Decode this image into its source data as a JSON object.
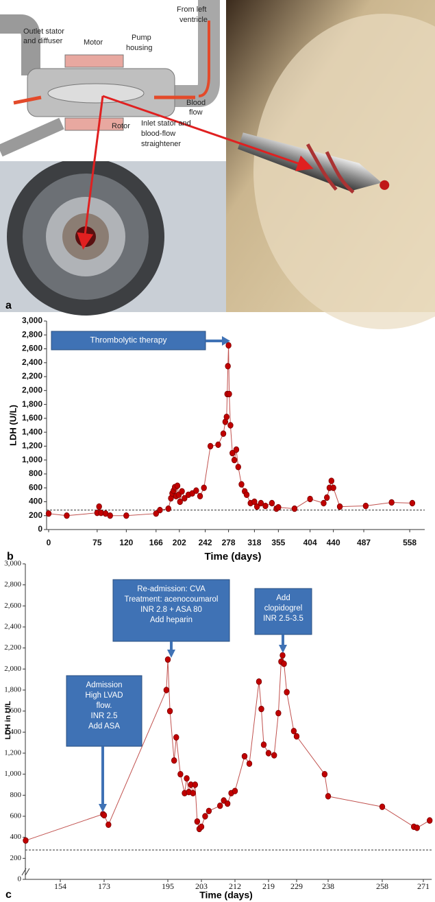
{
  "figure": {
    "panel_a": {
      "label": "a",
      "motor": [
        "Motor"
      ],
      "pump_housing": [
        "Pump",
        "housing"
      ],
      "from_lv": [
        "From left",
        "ventricle"
      ],
      "outlet": [
        "Outlet stator",
        "and diffuser"
      ],
      "blood_flow": [
        "Blood",
        "flow"
      ],
      "rotor": [
        "Rotor"
      ],
      "inlet": [
        "Inlet stator and",
        "blood-flow",
        "straightener"
      ]
    }
  },
  "chart_data": [
    {
      "type": "line",
      "panel_label": "b",
      "y_label": "LDH (U/L)",
      "x_label": "Time (days)",
      "color": "#c00000",
      "x": [
        0,
        28,
        75,
        78,
        81,
        88,
        95,
        120,
        166,
        172,
        185,
        189,
        191,
        193,
        195,
        197,
        199,
        201,
        203,
        206,
        210,
        216,
        222,
        228,
        234,
        240,
        250,
        262,
        270,
        273,
        275,
        276,
        277,
        278,
        279,
        281,
        284,
        287,
        290,
        293,
        298,
        303,
        306,
        312,
        318,
        322,
        328,
        335,
        345,
        352,
        355,
        380,
        404,
        425,
        430,
        434,
        437,
        440,
        450,
        490,
        530,
        562
      ],
      "values": [
        230,
        200,
        240,
        330,
        240,
        230,
        200,
        200,
        230,
        280,
        300,
        450,
        520,
        560,
        610,
        480,
        630,
        500,
        400,
        550,
        450,
        500,
        520,
        560,
        480,
        600,
        1200,
        1220,
        1380,
        1550,
        1620,
        1950,
        2350,
        2650,
        1950,
        1500,
        1100,
        1000,
        1150,
        900,
        650,
        550,
        500,
        380,
        400,
        330,
        380,
        340,
        380,
        300,
        320,
        300,
        440,
        380,
        460,
        600,
        700,
        600,
        330,
        340,
        390,
        380
      ],
      "xlim": [
        0,
        578
      ],
      "xticks": [
        0,
        75,
        120,
        166,
        202,
        242,
        278,
        318,
        355,
        404,
        440,
        487,
        558
      ],
      "ylim": [
        0,
        3000
      ],
      "yticks": [
        0,
        200,
        400,
        600,
        800,
        {
          "value": 1000,
          "label": "1,000"
        },
        {
          "value": 1200,
          "label": "1,200"
        },
        {
          "value": 1400,
          "label": "1,400"
        },
        {
          "value": 1600,
          "label": "1,600"
        },
        {
          "value": 1800,
          "label": "1,800"
        },
        {
          "value": 2000,
          "label": "2,000"
        },
        {
          "value": 2200,
          "label": "2,200"
        },
        {
          "value": 2400,
          "label": "2,400"
        },
        {
          "value": 2600,
          "label": "2,600"
        },
        {
          "value": 2800,
          "label": "2,800"
        },
        {
          "value": 3000,
          "label": "3,000"
        }
      ],
      "reference_line": 280,
      "annotations": [
        {
          "lines": [
            "Thrombolytic therapy"
          ]
        }
      ]
    },
    {
      "type": "line",
      "panel_label": "c",
      "y_label": "LDH in U/L",
      "x_label": "Time (days)",
      "color": "#c00000",
      "x": [
        139,
        172.5,
        173,
        174.5,
        194.5,
        195,
        195.5,
        196.5,
        197,
        198,
        199,
        199.5,
        200,
        200.5,
        201,
        201.5,
        202,
        202.5,
        203,
        204,
        205,
        208,
        209,
        210,
        211,
        212,
        214,
        215,
        217,
        217.5,
        218,
        219,
        221,
        222.5,
        223.5,
        224,
        224.5,
        225.5,
        228,
        229,
        237,
        238,
        258,
        268,
        269,
        273
      ],
      "values": [
        370,
        620,
        610,
        520,
        1800,
        2090,
        1600,
        1130,
        1350,
        1000,
        820,
        960,
        830,
        900,
        820,
        900,
        550,
        480,
        500,
        600,
        650,
        700,
        750,
        720,
        820,
        840,
        1170,
        1100,
        1880,
        1620,
        1280,
        1200,
        1180,
        1580,
        2070,
        2130,
        2050,
        1780,
        1410,
        1360,
        1000,
        790,
        690,
        500,
        490,
        560
      ],
      "xlim": [
        139,
        273
      ],
      "xticks": [
        154,
        173,
        195,
        203,
        212,
        219,
        229,
        238,
        258,
        271
      ],
      "ylim": [
        0,
        3000
      ],
      "yticks": [
        0,
        200,
        400,
        600,
        800,
        {
          "value": 1000,
          "label": "1,000"
        },
        {
          "value": 1200,
          "label": "1,200"
        },
        {
          "value": 1400,
          "label": "1,400"
        },
        {
          "value": 1600,
          "label": "1,600"
        },
        {
          "value": 1800,
          "label": "1,800"
        },
        {
          "value": 2000,
          "label": "2,000"
        },
        {
          "value": 2200,
          "label": "2,200"
        },
        {
          "value": 2400,
          "label": "2,400"
        },
        {
          "value": 2600,
          "label": "2,600"
        },
        {
          "value": 2800,
          "label": "2,800"
        },
        {
          "value": 3000,
          "label": "3,000"
        }
      ],
      "reference_line": 280,
      "annotations": [
        {
          "lines": [
            "Admission",
            "High LVAD",
            "flow.",
            "INR 2.5",
            "Add ASA"
          ]
        },
        {
          "lines": [
            "Re-admission: CVA",
            "Treatment: acenocoumarol",
            "INR 2.8 + ASA 80",
            "Add heparin"
          ]
        },
        {
          "lines": [
            "Add",
            "clopidogrel",
            "INR 2.5-3.5"
          ]
        }
      ]
    }
  ]
}
